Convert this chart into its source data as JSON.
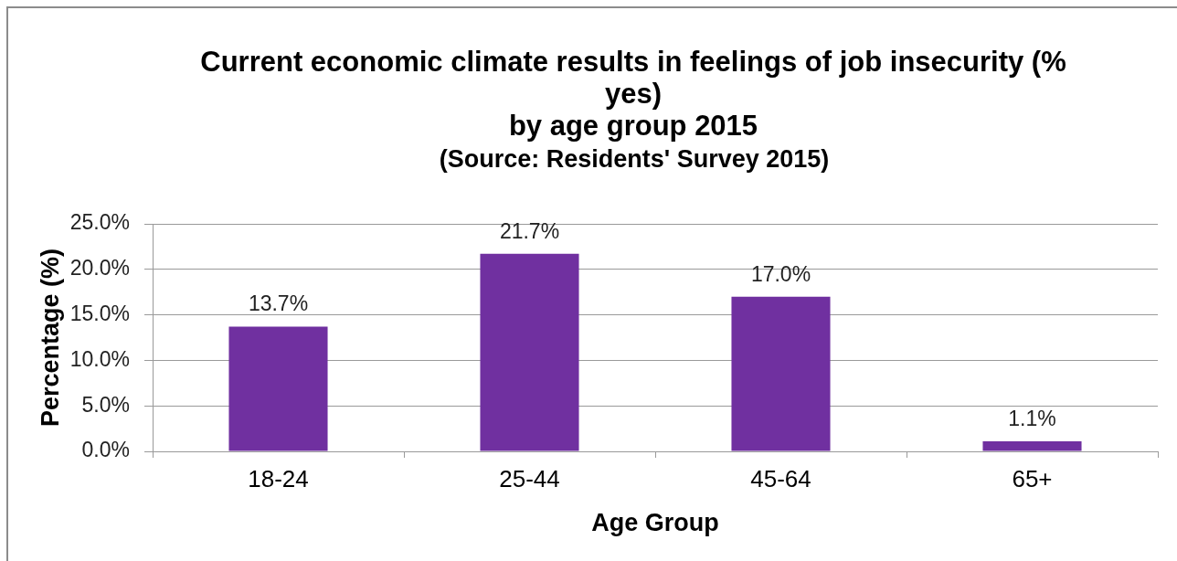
{
  "chart_data": {
    "type": "bar",
    "title": "Current economic climate results in feelings of job insecurity (% yes)\nby age group 2015",
    "subtitle": "(Source: Residents' Survey 2015)",
    "xlabel": "Age Group",
    "ylabel": "Percentage (%)",
    "categories": [
      "18-24",
      "25-44",
      "45-64",
      "65+"
    ],
    "values": [
      13.7,
      21.7,
      17.0,
      1.1
    ],
    "color": "#7030a0",
    "value_labels": [
      "13.7%",
      "21.7%",
      "17.0%",
      "1.1%"
    ],
    "ylim": [
      0,
      25
    ],
    "yticks": [
      {
        "value": 0,
        "label": "0.0%"
      },
      {
        "value": 5,
        "label": "5.0%"
      },
      {
        "value": 10,
        "label": "10.0%"
      },
      {
        "value": 15,
        "label": "15.0%"
      },
      {
        "value": 20,
        "label": "20.0%"
      },
      {
        "value": 25,
        "label": "25.0%"
      }
    ],
    "grid": "y"
  }
}
